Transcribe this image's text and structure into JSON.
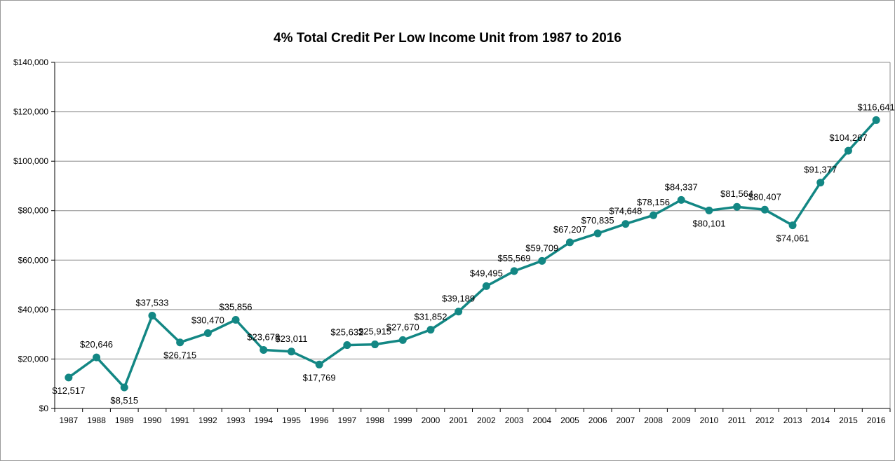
{
  "chart_data": {
    "type": "line",
    "title": "4% Total Credit Per Low Income Unit from 1987 to 2016",
    "xlabel": "",
    "ylabel": "",
    "ylim": [
      0,
      140000
    ],
    "y_ticks": [
      "$0",
      "$20,000",
      "$40,000",
      "$60,000",
      "$80,000",
      "$100,000",
      "$120,000",
      "$140,000"
    ],
    "grid": true,
    "legend": "none",
    "colors": {
      "series": "#138784",
      "grid": "#8c8c8c"
    },
    "categories": [
      "1987",
      "1988",
      "1989",
      "1990",
      "1991",
      "1992",
      "1993",
      "1994",
      "1995",
      "1996",
      "1997",
      "1998",
      "1999",
      "2000",
      "2001",
      "2002",
      "2003",
      "2004",
      "2005",
      "2006",
      "2007",
      "2008",
      "2009",
      "2010",
      "2011",
      "2012",
      "2013",
      "2014",
      "2015",
      "2016"
    ],
    "series": [
      {
        "values": [
          12517,
          20646,
          8515,
          37533,
          26715,
          30470,
          35856,
          23678,
          23011,
          17769,
          25632,
          25915,
          27670,
          31852,
          39189,
          49495,
          55569,
          59709,
          67207,
          70835,
          74648,
          78156,
          84337,
          80101,
          81564,
          80407,
          74061,
          91377,
          104267,
          116641
        ],
        "labels": [
          "$12,517",
          "$20,646",
          "$8,515",
          "$37,533",
          "$26,715",
          "$30,470",
          "$35,856",
          "$23,678",
          "$23,011",
          "$17,769",
          "$25,632",
          "$25,915",
          "$27,670",
          "$31,852",
          "$39,189",
          "$49,495",
          "$55,569",
          "$59,709",
          "$67,207",
          "$70,835",
          "$74,648",
          "$78,156",
          "$84,337",
          "$80,101",
          "$81,564",
          "$80,407",
          "$74,061",
          "$91,377",
          "$104,267",
          "$116,641"
        ]
      }
    ]
  }
}
